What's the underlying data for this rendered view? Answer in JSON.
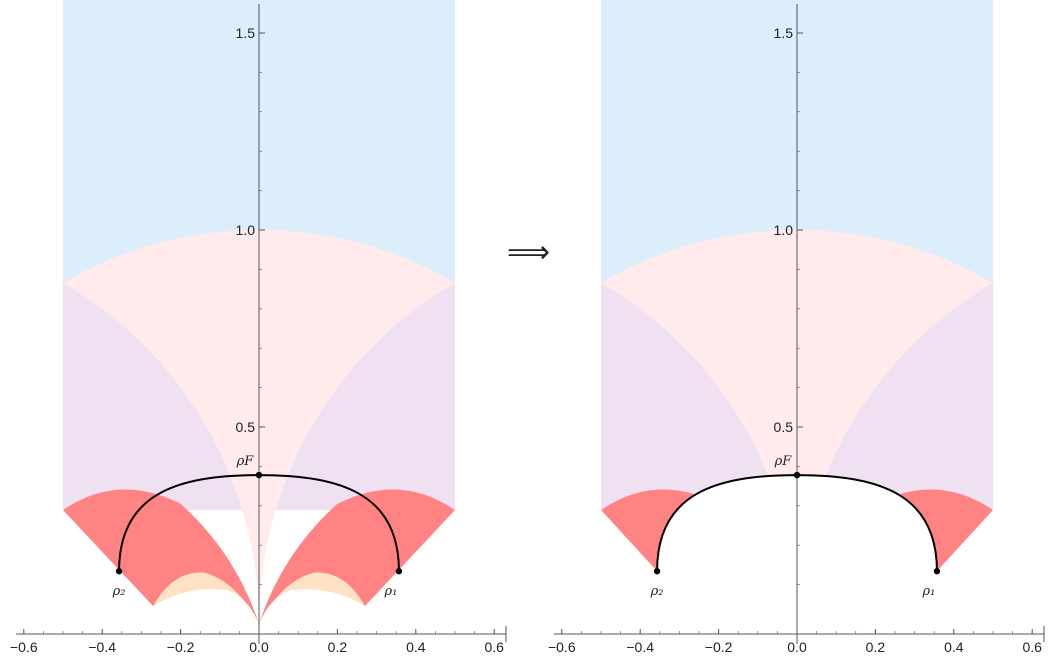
{
  "colors": {
    "blue": "#dcedfc",
    "pink": "#ffebeb",
    "lavender": "#f0e1f2",
    "red": "#ff8383",
    "peach": "#ffe2c6",
    "curve": "#000000",
    "axis": "#555555"
  },
  "arrow": "⟹",
  "chart_data": [
    {
      "type": "diagram",
      "panel": "left",
      "xlim": [
        -0.6,
        0.6
      ],
      "ylim": [
        0,
        1.6
      ],
      "x_ticks": [
        -0.6,
        -0.4,
        -0.2,
        0.0,
        0.2,
        0.4,
        0.6
      ],
      "x_tick_labels": [
        "−0.6",
        "−0.4",
        "−0.2",
        "0.0",
        "0.2",
        "0.4",
        "0.6"
      ],
      "y_ticks": [
        0.5,
        1.0,
        1.5
      ],
      "y_tick_labels": [
        "0.5",
        "1.0",
        "1.5"
      ],
      "points": [
        {
          "label": "ρ₂",
          "x": -0.357,
          "y": 0.134
        },
        {
          "label": "ρ₁",
          "x": 0.357,
          "y": 0.134
        },
        {
          "label": "ρF",
          "x": 0.0,
          "y": 0.378
        }
      ],
      "arc": {
        "from": "ρ₂",
        "through": "ρF",
        "to": "ρ₁"
      },
      "show_lower_cusp_regions": true
    },
    {
      "type": "diagram",
      "panel": "right",
      "xlim": [
        -0.6,
        0.6
      ],
      "ylim": [
        0,
        1.6
      ],
      "x_ticks": [
        -0.6,
        -0.4,
        -0.2,
        0.0,
        0.2,
        0.4,
        0.6
      ],
      "x_tick_labels": [
        "−0.6",
        "−0.4",
        "−0.2",
        "0.0",
        "0.2",
        "0.4",
        "0.6"
      ],
      "y_ticks": [
        0.5,
        1.0,
        1.5
      ],
      "y_tick_labels": [
        "0.5",
        "1.0",
        "1.5"
      ],
      "points": [
        {
          "label": "ρ₂",
          "x": -0.357,
          "y": 0.134
        },
        {
          "label": "ρ₁",
          "x": 0.357,
          "y": 0.134
        },
        {
          "label": "ρF",
          "x": 0.0,
          "y": 0.378
        }
      ],
      "arc": {
        "from": "ρ₂",
        "through": "ρF",
        "to": "ρ₁"
      },
      "show_lower_cusp_regions": false
    }
  ]
}
